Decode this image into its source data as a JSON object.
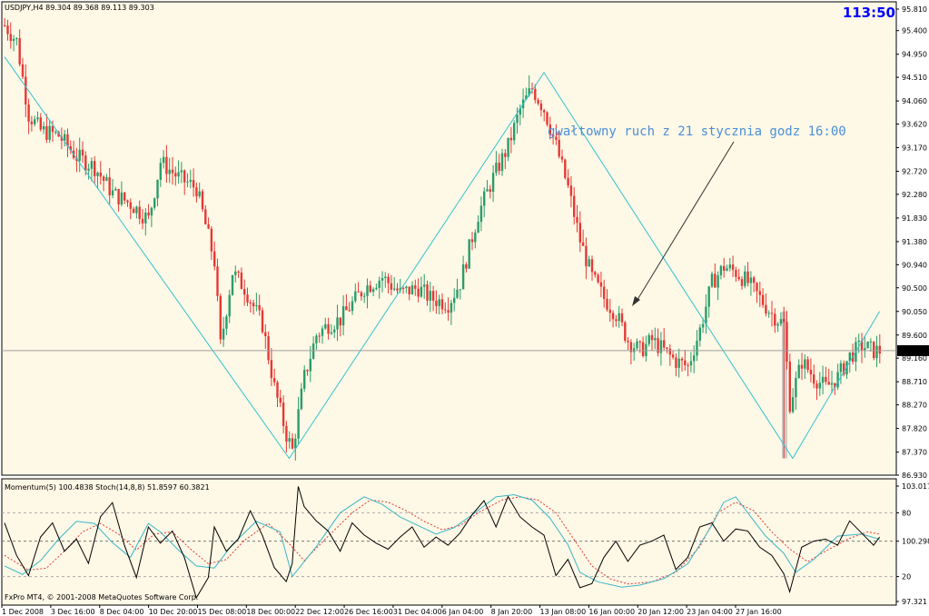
{
  "chart_header": "USDJPY,H4  89.304 89.368 89.113 89.303",
  "clock": "113:50",
  "annotation": "gwałtowny ruch z 21 stycznia godz 16:00",
  "current_price_label": "89.303",
  "indicator_header": "Momentum(5) 100.4838  Stoch(14,8,8) 51.8597 60.3821",
  "copyright": "FxPro MT4, © 2001-2008 MetaQuotes Software Corp.",
  "colors": {
    "background": "#fef8e6",
    "bull": "#2a9d6a",
    "bear": "#e53935",
    "zigzag": "#33c2d0",
    "current_price_line": "#9e9e9e",
    "stoch_main": "#3bb6c8",
    "stoch_signal": "#e53935",
    "momentum": "#000000",
    "annotation": "#4a90d9",
    "clock": "#0000ff",
    "highlight_bar": "#bdbdbd"
  },
  "chart_data": {
    "type": "candlestick",
    "symbol": "USDJPY",
    "timeframe": "H4",
    "ohlc_header": {
      "open": 89.304,
      "high": 89.368,
      "low": 89.113,
      "close": 89.303
    },
    "price_axis_ticks": [
      "95.810",
      "95.400",
      "94.950",
      "94.510",
      "94.060",
      "93.620",
      "93.170",
      "92.720",
      "92.280",
      "91.830",
      "91.380",
      "90.940",
      "90.500",
      "90.050",
      "89.600",
      "89.160",
      "88.710",
      "88.270",
      "87.820",
      "87.370",
      "86.930"
    ],
    "ylim": [
      86.93,
      95.81
    ],
    "time_axis_ticks": [
      "1 Dec 2008",
      "3 Dec 16:00",
      "8 Dec 04:00",
      "10 Dec 20:00",
      "15 Dec 08:00",
      "18 Dec 00:00",
      "22 Dec 12:00",
      "26 Dec 16:00",
      "31 Dec 04:00",
      "6 Jan 04:00",
      "8 Jan 20:00",
      "13 Jan 08:00",
      "16 Jan 00:00",
      "20 Jan 12:00",
      "23 Jan 04:00",
      "27 Jan 16:00"
    ],
    "current_price": 89.303,
    "zigzag": [
      {
        "x": 0,
        "price": 94.9
      },
      {
        "x": 95,
        "price": 87.25
      },
      {
        "x": 180,
        "price": 94.6
      },
      {
        "x": 263,
        "price": 87.25
      },
      {
        "x": 292,
        "price": 90.05
      }
    ],
    "price_path": [
      [
        0,
        95.5
      ],
      [
        4,
        95.2
      ],
      [
        8,
        93.8
      ],
      [
        12,
        93.5
      ],
      [
        18,
        93.4
      ],
      [
        24,
        93.0
      ],
      [
        30,
        92.8
      ],
      [
        36,
        92.3
      ],
      [
        42,
        92.1
      ],
      [
        48,
        91.8
      ],
      [
        52,
        92.9
      ],
      [
        58,
        92.6
      ],
      [
        64,
        92.4
      ],
      [
        70,
        91.0
      ],
      [
        72,
        89.4
      ],
      [
        76,
        90.8
      ],
      [
        80,
        90.5
      ],
      [
        86,
        89.8
      ],
      [
        90,
        88.6
      ],
      [
        94,
        87.7
      ],
      [
        96,
        87.4
      ],
      [
        100,
        88.8
      ],
      [
        104,
        89.6
      ],
      [
        108,
        89.8
      ],
      [
        112,
        89.9
      ],
      [
        116,
        90.2
      ],
      [
        120,
        90.5
      ],
      [
        126,
        90.7
      ],
      [
        132,
        90.4
      ],
      [
        138,
        90.5
      ],
      [
        142,
        90.3
      ],
      [
        148,
        90.2
      ],
      [
        152,
        90.6
      ],
      [
        158,
        91.9
      ],
      [
        163,
        92.6
      ],
      [
        168,
        93.2
      ],
      [
        172,
        93.9
      ],
      [
        176,
        94.3
      ],
      [
        180,
        93.9
      ],
      [
        184,
        93.2
      ],
      [
        188,
        92.4
      ],
      [
        192,
        91.4
      ],
      [
        196,
        90.7
      ],
      [
        200,
        90.3
      ],
      [
        204,
        90.0
      ],
      [
        208,
        89.5
      ],
      [
        212,
        89.3
      ],
      [
        216,
        89.5
      ],
      [
        220,
        89.3
      ],
      [
        224,
        89.1
      ],
      [
        228,
        89.0
      ],
      [
        232,
        89.7
      ],
      [
        236,
        90.6
      ],
      [
        240,
        90.9
      ],
      [
        244,
        90.8
      ],
      [
        248,
        90.6
      ],
      [
        252,
        90.3
      ],
      [
        256,
        90.0
      ],
      [
        260,
        89.8
      ],
      [
        262,
        88.3
      ],
      [
        266,
        89.1
      ],
      [
        270,
        88.8
      ],
      [
        274,
        88.6
      ],
      [
        278,
        88.8
      ],
      [
        282,
        89.2
      ],
      [
        286,
        89.4
      ],
      [
        290,
        89.3
      ],
      [
        292,
        89.3
      ]
    ],
    "spike": {
      "x": 260,
      "high": 90.05,
      "low": 87.25
    },
    "indicators": {
      "momentum": {
        "period": 5,
        "last": 100.4838,
        "levels": [
          97.321,
          100.2986,
          103.0177
        ]
      },
      "stochastic": {
        "params": [
          14,
          8,
          8
        ],
        "main": 51.8597,
        "signal": 60.3821,
        "levels": [
          20,
          80
        ]
      },
      "ticks": [
        "103.0177",
        "80",
        "100.2986",
        "20",
        "97.321"
      ],
      "stoch_main": [
        [
          0,
          30
        ],
        [
          6,
          22
        ],
        [
          12,
          35
        ],
        [
          18,
          55
        ],
        [
          24,
          72
        ],
        [
          30,
          70
        ],
        [
          36,
          52
        ],
        [
          42,
          38
        ],
        [
          48,
          70
        ],
        [
          52,
          62
        ],
        [
          58,
          45
        ],
        [
          64,
          30
        ],
        [
          70,
          28
        ],
        [
          76,
          50
        ],
        [
          84,
          72
        ],
        [
          92,
          62
        ],
        [
          96,
          20
        ],
        [
          104,
          48
        ],
        [
          112,
          80
        ],
        [
          120,
          95
        ],
        [
          126,
          88
        ],
        [
          132,
          76
        ],
        [
          138,
          68
        ],
        [
          144,
          60
        ],
        [
          150,
          66
        ],
        [
          156,
          78
        ],
        [
          164,
          95
        ],
        [
          170,
          97
        ],
        [
          176,
          92
        ],
        [
          182,
          75
        ],
        [
          188,
          50
        ],
        [
          192,
          24
        ],
        [
          198,
          15
        ],
        [
          206,
          10
        ],
        [
          212,
          12
        ],
        [
          220,
          18
        ],
        [
          228,
          32
        ],
        [
          236,
          68
        ],
        [
          240,
          90
        ],
        [
          244,
          95
        ],
        [
          248,
          80
        ],
        [
          254,
          58
        ],
        [
          260,
          42
        ],
        [
          264,
          24
        ],
        [
          270,
          36
        ],
        [
          278,
          58
        ],
        [
          286,
          60
        ],
        [
          292,
          55
        ]
      ],
      "stoch_signal": [
        [
          0,
          40
        ],
        [
          8,
          26
        ],
        [
          14,
          28
        ],
        [
          20,
          44
        ],
        [
          26,
          62
        ],
        [
          32,
          70
        ],
        [
          38,
          60
        ],
        [
          44,
          45
        ],
        [
          50,
          60
        ],
        [
          56,
          62
        ],
        [
          62,
          46
        ],
        [
          68,
          32
        ],
        [
          74,
          36
        ],
        [
          80,
          54
        ],
        [
          88,
          70
        ],
        [
          94,
          54
        ],
        [
          100,
          35
        ],
        [
          108,
          58
        ],
        [
          116,
          80
        ],
        [
          122,
          92
        ],
        [
          128,
          90
        ],
        [
          134,
          82
        ],
        [
          140,
          72
        ],
        [
          146,
          64
        ],
        [
          152,
          68
        ],
        [
          158,
          80
        ],
        [
          166,
          92
        ],
        [
          172,
          95
        ],
        [
          178,
          92
        ],
        [
          184,
          80
        ],
        [
          190,
          55
        ],
        [
          196,
          30
        ],
        [
          202,
          18
        ],
        [
          208,
          13
        ],
        [
          216,
          15
        ],
        [
          224,
          24
        ],
        [
          232,
          48
        ],
        [
          238,
          80
        ],
        [
          244,
          90
        ],
        [
          250,
          82
        ],
        [
          256,
          62
        ],
        [
          262,
          46
        ],
        [
          268,
          34
        ],
        [
          274,
          44
        ],
        [
          282,
          56
        ],
        [
          288,
          62
        ],
        [
          292,
          60
        ]
      ],
      "momentum_series": [
        [
          0,
          101.2
        ],
        [
          4,
          99.6
        ],
        [
          8,
          98.6
        ],
        [
          12,
          100.5
        ],
        [
          16,
          101.2
        ],
        [
          20,
          99.8
        ],
        [
          24,
          100.4
        ],
        [
          28,
          99.2
        ],
        [
          32,
          101.5
        ],
        [
          36,
          102.2
        ],
        [
          40,
          100.1
        ],
        [
          44,
          98.5
        ],
        [
          48,
          101.0
        ],
        [
          52,
          100.2
        ],
        [
          56,
          100.8
        ],
        [
          60,
          99.5
        ],
        [
          64,
          97.5
        ],
        [
          68,
          98.5
        ],
        [
          70,
          101.0
        ],
        [
          74,
          99.8
        ],
        [
          78,
          100.4
        ],
        [
          82,
          101.8
        ],
        [
          86,
          100.6
        ],
        [
          90,
          99.0
        ],
        [
          94,
          98.3
        ],
        [
          96,
          99.2
        ],
        [
          98,
          103.0
        ],
        [
          100,
          102.0
        ],
        [
          104,
          101.3
        ],
        [
          108,
          100.8
        ],
        [
          112,
          99.8
        ],
        [
          116,
          101.2
        ],
        [
          120,
          100.6
        ],
        [
          124,
          100.2
        ],
        [
          128,
          99.9
        ],
        [
          132,
          100.5
        ],
        [
          136,
          101.0
        ],
        [
          140,
          100.0
        ],
        [
          144,
          100.5
        ],
        [
          148,
          100.1
        ],
        [
          152,
          100.7
        ],
        [
          156,
          101.6
        ],
        [
          160,
          102.3
        ],
        [
          164,
          101.0
        ],
        [
          168,
          102.5
        ],
        [
          172,
          101.5
        ],
        [
          176,
          101.0
        ],
        [
          180,
          100.6
        ],
        [
          184,
          98.6
        ],
        [
          188,
          99.4
        ],
        [
          192,
          98.0
        ],
        [
          196,
          98.2
        ],
        [
          200,
          99.5
        ],
        [
          204,
          100.3
        ],
        [
          208,
          99.3
        ],
        [
          212,
          100.1
        ],
        [
          216,
          100.3
        ],
        [
          220,
          100.6
        ],
        [
          224,
          98.9
        ],
        [
          228,
          99.5
        ],
        [
          232,
          101.0
        ],
        [
          236,
          101.2
        ],
        [
          240,
          100.3
        ],
        [
          244,
          100.9
        ],
        [
          248,
          100.8
        ],
        [
          252,
          100.0
        ],
        [
          256,
          99.6
        ],
        [
          260,
          98.7
        ],
        [
          262,
          97.8
        ],
        [
          266,
          100.0
        ],
        [
          270,
          100.3
        ],
        [
          274,
          100.4
        ],
        [
          278,
          100.1
        ],
        [
          282,
          101.3
        ],
        [
          286,
          100.7
        ],
        [
          290,
          100.1
        ],
        [
          292,
          100.5
        ]
      ]
    }
  }
}
